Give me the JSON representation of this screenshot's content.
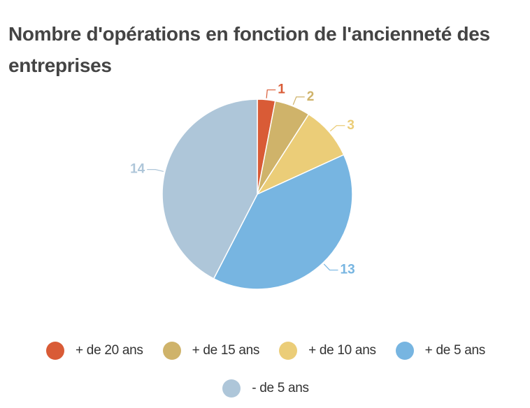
{
  "chart_data": {
    "type": "pie",
    "title": "Nombre d'opérations en fonction de l'ancienneté des entreprises",
    "categories": [
      "+ de 20 ans",
      "+ de 15 ans",
      "+ de 10 ans",
      "+ de 5 ans",
      "- de 5 ans"
    ],
    "values": [
      1,
      2,
      3,
      13,
      14
    ],
    "colors": [
      "#d95b36",
      "#cfb36a",
      "#ebcd78",
      "#77b5e1",
      "#aec6d9"
    ],
    "legend": "bottom"
  }
}
